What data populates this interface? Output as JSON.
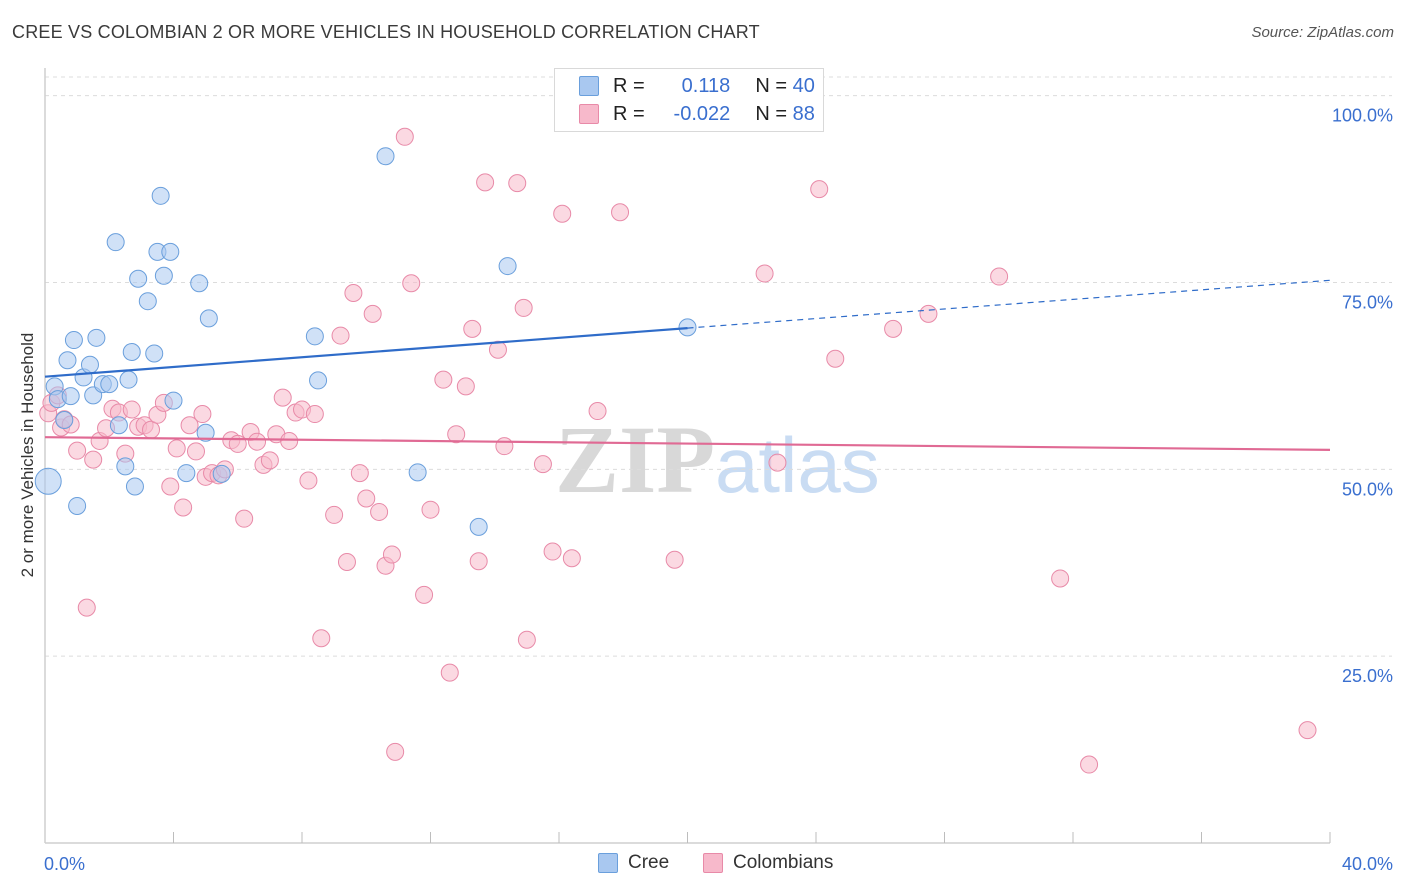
{
  "title": "CREE VS COLOMBIAN 2 OR MORE VEHICLES IN HOUSEHOLD CORRELATION CHART",
  "source": "Source: ZipAtlas.com",
  "watermark": {
    "zip": "ZIP",
    "atlas": "atlas"
  },
  "legend": {
    "rows": [
      {
        "r_label": "R =",
        "r_value": "0.118",
        "n_label": "N =",
        "n_value": "40",
        "color": "#a9c8f0"
      },
      {
        "r_label": "R =",
        "r_value": "-0.022",
        "n_label": "N =",
        "n_value": "88",
        "color": "#f7b9cb"
      }
    ]
  },
  "bottom_legend": [
    {
      "label": "Cree",
      "color": "#a9c8f0"
    },
    {
      "label": "Colombians",
      "color": "#f7b9cb"
    }
  ],
  "chart_data": {
    "type": "scatter",
    "title": "CREE VS COLOMBIAN 2 OR MORE VEHICLES IN HOUSEHOLD CORRELATION CHART",
    "xlabel": "",
    "ylabel": "2 or more Vehicles in Household",
    "xlim": [
      0,
      40
    ],
    "ylim": [
      0,
      102.5
    ],
    "x_tick_labels": [
      {
        "value": 0,
        "label": "0.0%"
      },
      {
        "value": 40,
        "label": "40.0%"
      }
    ],
    "y_tick_labels": [
      {
        "value": 25,
        "label": "25.0%"
      },
      {
        "value": 50,
        "label": "50.0%"
      },
      {
        "value": 75,
        "label": "75.0%"
      },
      {
        "value": 100,
        "label": "100.0%"
      }
    ],
    "x_minor_ticks": [
      4,
      8,
      12,
      16,
      20,
      24,
      28,
      32,
      36
    ],
    "series": [
      {
        "name": "Cree",
        "color": "#a9c8f0",
        "stroke": "#6a9fdc",
        "trend": {
          "x0": 0,
          "y0": 62.4,
          "x1": 20,
          "y1": 68.9,
          "x_dash_end": 40,
          "y_dash_end": 75.3,
          "color": "#2f6cc9"
        },
        "points": [
          [
            0.1,
            48.4
          ],
          [
            0.3,
            61.1
          ],
          [
            0.4,
            59.4
          ],
          [
            0.6,
            56.6
          ],
          [
            0.7,
            64.6
          ],
          [
            0.8,
            59.8
          ],
          [
            0.9,
            67.3
          ],
          [
            1.0,
            45.1
          ],
          [
            1.2,
            62.3
          ],
          [
            1.4,
            64.0
          ],
          [
            1.5,
            59.9
          ],
          [
            1.6,
            67.6
          ],
          [
            1.8,
            61.4
          ],
          [
            2.0,
            61.4
          ],
          [
            2.2,
            80.4
          ],
          [
            2.3,
            55.9
          ],
          [
            2.5,
            50.4
          ],
          [
            2.6,
            62.0
          ],
          [
            2.7,
            65.7
          ],
          [
            2.8,
            47.7
          ],
          [
            2.9,
            75.5
          ],
          [
            3.2,
            72.5
          ],
          [
            3.4,
            65.5
          ],
          [
            3.5,
            79.1
          ],
          [
            3.6,
            86.6
          ],
          [
            3.7,
            75.9
          ],
          [
            3.9,
            79.1
          ],
          [
            4.0,
            59.2
          ],
          [
            4.4,
            49.5
          ],
          [
            4.8,
            74.9
          ],
          [
            5.0,
            54.9
          ],
          [
            5.1,
            70.2
          ],
          [
            5.5,
            49.4
          ],
          [
            8.4,
            67.8
          ],
          [
            8.5,
            61.9
          ],
          [
            10.6,
            91.9
          ],
          [
            11.6,
            49.6
          ],
          [
            13.5,
            42.3
          ],
          [
            14.4,
            77.2
          ],
          [
            20.0,
            69.0
          ]
        ]
      },
      {
        "name": "Colombians",
        "color": "#f7b9cb",
        "stroke": "#e88aa8",
        "trend": {
          "x0": 0,
          "y0": 54.3,
          "x1": 40,
          "y1": 52.6,
          "color": "#e06a94"
        },
        "points": [
          [
            0.1,
            57.5
          ],
          [
            0.2,
            58.9
          ],
          [
            0.4,
            59.9
          ],
          [
            0.5,
            55.6
          ],
          [
            0.6,
            56.7
          ],
          [
            0.8,
            56.0
          ],
          [
            1.0,
            52.5
          ],
          [
            1.3,
            31.5
          ],
          [
            1.5,
            51.3
          ],
          [
            1.7,
            53.8
          ],
          [
            1.9,
            55.5
          ],
          [
            2.1,
            58.1
          ],
          [
            2.3,
            57.6
          ],
          [
            2.5,
            52.1
          ],
          [
            2.7,
            58.0
          ],
          [
            2.9,
            55.7
          ],
          [
            3.1,
            55.9
          ],
          [
            3.3,
            55.3
          ],
          [
            3.5,
            57.3
          ],
          [
            3.7,
            58.9
          ],
          [
            3.9,
            47.7
          ],
          [
            4.1,
            52.8
          ],
          [
            4.3,
            44.9
          ],
          [
            4.5,
            55.9
          ],
          [
            4.7,
            52.4
          ],
          [
            4.9,
            57.4
          ],
          [
            5.0,
            49.0
          ],
          [
            5.2,
            49.5
          ],
          [
            5.4,
            49.2
          ],
          [
            5.6,
            50.0
          ],
          [
            5.8,
            53.9
          ],
          [
            6.0,
            53.4
          ],
          [
            6.2,
            43.4
          ],
          [
            6.4,
            55.0
          ],
          [
            6.6,
            53.7
          ],
          [
            6.8,
            50.6
          ],
          [
            7.0,
            51.2
          ],
          [
            7.2,
            54.7
          ],
          [
            7.4,
            59.6
          ],
          [
            7.6,
            53.8
          ],
          [
            7.8,
            57.6
          ],
          [
            8.0,
            58.0
          ],
          [
            8.2,
            48.5
          ],
          [
            8.4,
            57.4
          ],
          [
            8.6,
            27.4
          ],
          [
            9.0,
            43.9
          ],
          [
            9.2,
            67.9
          ],
          [
            9.4,
            37.6
          ],
          [
            9.6,
            73.6
          ],
          [
            9.8,
            49.5
          ],
          [
            10.0,
            46.1
          ],
          [
            10.2,
            70.8
          ],
          [
            10.4,
            44.3
          ],
          [
            10.6,
            37.1
          ],
          [
            10.8,
            38.6
          ],
          [
            10.9,
            12.2
          ],
          [
            11.2,
            94.5
          ],
          [
            11.4,
            74.9
          ],
          [
            11.8,
            33.2
          ],
          [
            12.0,
            44.6
          ],
          [
            12.4,
            62.0
          ],
          [
            12.6,
            22.8
          ],
          [
            12.8,
            54.7
          ],
          [
            13.1,
            61.1
          ],
          [
            13.3,
            68.8
          ],
          [
            13.5,
            37.7
          ],
          [
            13.7,
            88.4
          ],
          [
            14.1,
            66.0
          ],
          [
            14.3,
            53.1
          ],
          [
            14.7,
            88.3
          ],
          [
            14.9,
            71.6
          ],
          [
            15.0,
            27.2
          ],
          [
            15.5,
            50.7
          ],
          [
            15.8,
            39.0
          ],
          [
            16.1,
            84.2
          ],
          [
            16.4,
            38.1
          ],
          [
            17.2,
            57.8
          ],
          [
            17.9,
            84.4
          ],
          [
            19.6,
            37.9
          ],
          [
            22.4,
            76.2
          ],
          [
            22.8,
            50.9
          ],
          [
            24.1,
            87.5
          ],
          [
            24.6,
            64.8
          ],
          [
            26.4,
            68.8
          ],
          [
            27.5,
            70.8
          ],
          [
            29.7,
            75.8
          ],
          [
            31.6,
            35.4
          ],
          [
            32.5,
            10.5
          ],
          [
            39.3,
            15.1
          ]
        ]
      }
    ]
  }
}
